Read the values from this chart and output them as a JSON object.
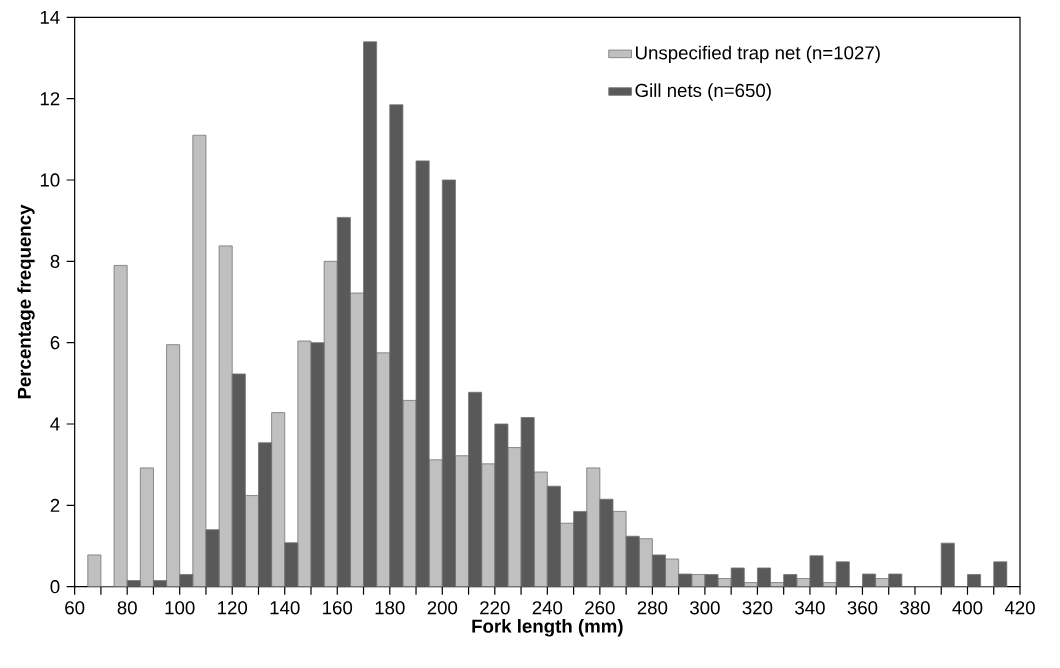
{
  "chart_data": {
    "type": "bar",
    "xlabel": "Fork length (mm)",
    "ylabel": "Percentage frequency",
    "x": [
      70,
      80,
      90,
      100,
      110,
      120,
      130,
      140,
      150,
      160,
      170,
      180,
      190,
      200,
      210,
      220,
      230,
      240,
      250,
      260,
      270,
      280,
      290,
      300,
      310,
      320,
      330,
      340,
      350,
      360,
      370,
      380,
      390,
      400,
      410
    ],
    "series": [
      {
        "name": "Unspecified trap net (n=1027)",
        "color": "#c0c0c0",
        "values": [
          0.78,
          7.9,
          2.92,
          5.95,
          11.1,
          8.38,
          2.24,
          4.28,
          6.04,
          8.0,
          7.22,
          5.75,
          4.58,
          3.12,
          3.22,
          3.02,
          3.42,
          2.82,
          1.56,
          2.92,
          1.85,
          1.18,
          0.68,
          0.3,
          0.2,
          0.1,
          0.1,
          0.2,
          0.1,
          0,
          0.2,
          0,
          0,
          0,
          0
        ]
      },
      {
        "name": "Gill nets (n=650)",
        "color": "#595959",
        "values": [
          0,
          0.15,
          0.15,
          0.3,
          1.4,
          5.23,
          3.54,
          1.08,
          6.0,
          9.08,
          13.4,
          11.85,
          10.47,
          10.0,
          4.78,
          4.0,
          4.16,
          2.47,
          1.85,
          2.15,
          1.24,
          0.78,
          0.31,
          0.3,
          0.46,
          0.46,
          0.3,
          0.76,
          0.61,
          0.31,
          0.31,
          0,
          1.07,
          0.3,
          0.61
        ]
      }
    ],
    "xlim": [
      60,
      420
    ],
    "xticks": [
      60,
      {
        "value": 70,
        "label": null
      },
      80,
      {
        "value": 90,
        "label": null
      },
      100,
      {
        "value": 110,
        "label": null
      },
      120,
      {
        "value": 130,
        "label": null
      },
      140,
      {
        "value": 150,
        "label": null
      },
      160,
      {
        "value": 170,
        "label": null
      },
      180,
      {
        "value": 190,
        "label": null
      },
      200,
      {
        "value": 210,
        "label": null
      },
      220,
      {
        "value": 230,
        "label": null
      },
      240,
      {
        "value": 250,
        "label": null
      },
      260,
      {
        "value": 270,
        "label": null
      },
      280,
      {
        "value": 290,
        "label": null
      },
      300,
      {
        "value": 310,
        "label": null
      },
      320,
      {
        "value": 330,
        "label": null
      },
      340,
      {
        "value": 350,
        "label": null
      },
      360,
      {
        "value": 370,
        "label": null
      },
      380,
      {
        "value": 390,
        "label": null
      },
      400,
      {
        "value": 410,
        "label": null
      },
      420
    ],
    "ylim": [
      0,
      14
    ],
    "yticks": [
      0,
      2,
      4,
      6,
      8,
      10,
      12,
      14
    ],
    "grid": false,
    "legend": "top right"
  }
}
